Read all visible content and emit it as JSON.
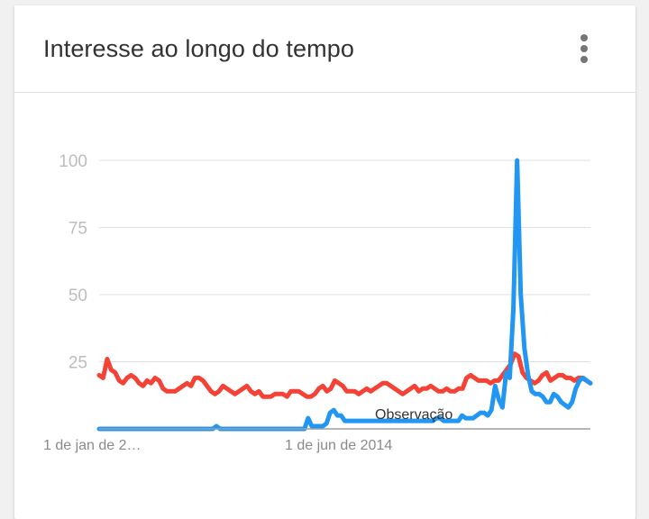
{
  "card": {
    "title": "Interesse ao longo do tempo"
  },
  "icons": {
    "menu": "more-vert-icon"
  },
  "colors": {
    "series_blue": "#2196f3",
    "series_red": "#f44336",
    "gridline": "#e0e0e0",
    "axis": "#9e9e9e"
  },
  "chart_data": {
    "type": "line",
    "ylim": [
      0,
      100
    ],
    "yticks": [
      "100",
      "75",
      "50",
      "25"
    ],
    "xticks": [
      "1 de jan de 2…",
      "1 de jun de 2014"
    ],
    "annotation": "Observação",
    "grid": true,
    "series": [
      {
        "color": "#2196f3",
        "values": [
          0,
          0,
          0,
          0,
          0,
          0,
          0,
          0,
          0,
          0,
          0,
          0,
          0,
          0,
          0,
          0,
          0,
          0,
          0,
          0,
          0,
          0,
          0,
          0,
          0,
          0,
          0,
          0,
          0,
          0,
          0,
          0,
          1,
          0,
          0,
          0,
          0,
          0,
          0,
          0,
          0,
          0,
          0,
          0,
          0,
          0,
          0,
          0,
          0,
          0,
          0,
          0,
          0,
          0,
          0,
          0,
          0,
          4,
          1,
          1,
          1,
          1,
          2,
          6,
          7,
          5,
          5,
          3,
          3,
          3,
          3,
          3,
          3,
          3,
          3,
          3,
          3,
          3,
          3,
          3,
          3,
          3,
          3,
          3,
          3,
          3,
          3,
          3,
          3,
          3,
          3,
          3,
          4,
          4,
          3,
          3,
          3,
          3,
          3,
          5,
          4,
          4,
          4,
          5,
          6,
          6,
          5,
          7,
          16,
          11,
          8,
          21,
          19,
          45,
          100,
          50,
          30,
          20,
          14,
          13,
          13,
          12,
          10,
          10,
          13,
          12,
          10,
          9,
          8,
          10,
          15,
          18,
          19,
          18,
          17
        ]
      },
      {
        "color": "#f44336",
        "values": [
          20,
          19,
          26,
          22,
          21,
          18,
          17,
          19,
          20,
          19,
          17,
          16,
          18,
          17,
          19,
          18,
          15,
          14,
          14,
          14,
          15,
          16,
          17,
          16,
          19,
          19,
          18,
          16,
          14,
          13,
          14,
          16,
          15,
          14,
          13,
          14,
          15,
          16,
          14,
          13,
          14,
          12,
          12,
          12,
          13,
          13,
          13,
          12,
          14,
          14,
          14,
          13,
          12,
          12,
          13,
          15,
          16,
          14,
          15,
          18,
          17,
          16,
          14,
          14,
          14,
          13,
          14,
          15,
          14,
          15,
          16,
          17,
          17,
          16,
          15,
          14,
          13,
          14,
          15,
          16,
          14,
          15,
          15,
          16,
          15,
          14,
          14,
          15,
          14,
          14,
          15,
          15,
          19,
          20,
          19,
          18,
          18,
          18,
          17,
          18,
          18,
          20,
          22,
          24,
          28,
          27,
          21,
          19,
          18,
          17,
          18,
          20,
          21,
          18,
          19,
          20,
          20,
          19,
          19,
          18,
          19,
          19,
          18,
          17
        ]
      }
    ]
  }
}
